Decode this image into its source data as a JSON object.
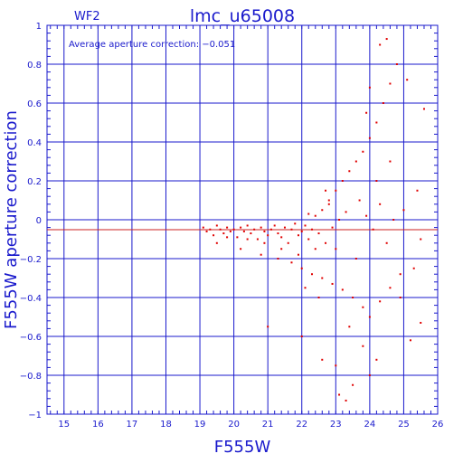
{
  "header": {
    "chip": "WF2",
    "title": "lmc_u65008"
  },
  "annotation": "Average aperture correction: −0.051",
  "colors": {
    "axis": "#1a1acc",
    "points": "#e00000",
    "mean_line": "#cc2222"
  },
  "chart_data": {
    "type": "scatter",
    "xlabel": "F555W",
    "ylabel": "F555W aperture correction",
    "xlim": [
      14.5,
      26
    ],
    "ylim": [
      -1,
      1
    ],
    "x_ticks": [
      15,
      16,
      17,
      18,
      19,
      20,
      21,
      22,
      23,
      24,
      25,
      26
    ],
    "y_ticks": [
      -1,
      -0.8,
      -0.6,
      -0.4,
      -0.2,
      0,
      0.2,
      0.4,
      0.6,
      0.8,
      1
    ],
    "y_tick_labels": [
      "−1",
      "−0.8",
      "−0.6",
      "−0.4",
      "−0.2",
      "0",
      "0.2",
      "0.4",
      "0.6",
      "0.8",
      "1"
    ],
    "grid": true,
    "mean_correction": -0.051,
    "points": [
      [
        19.1,
        -0.04
      ],
      [
        19.2,
        -0.06
      ],
      [
        19.3,
        -0.05
      ],
      [
        19.4,
        -0.08
      ],
      [
        19.5,
        -0.03
      ],
      [
        19.6,
        -0.05
      ],
      [
        19.7,
        -0.07
      ],
      [
        19.8,
        -0.04
      ],
      [
        19.9,
        -0.06
      ],
      [
        20.0,
        -0.05
      ],
      [
        20.1,
        -0.09
      ],
      [
        20.2,
        -0.04
      ],
      [
        20.3,
        -0.06
      ],
      [
        20.4,
        -0.03
      ],
      [
        20.5,
        -0.07
      ],
      [
        20.6,
        -0.05
      ],
      [
        20.7,
        -0.1
      ],
      [
        20.8,
        -0.04
      ],
      [
        20.9,
        -0.06
      ],
      [
        21.0,
        -0.08
      ],
      [
        21.1,
        -0.05
      ],
      [
        21.2,
        -0.03
      ],
      [
        21.3,
        -0.07
      ],
      [
        21.4,
        -0.09
      ],
      [
        21.5,
        -0.04
      ],
      [
        21.6,
        -0.12
      ],
      [
        21.7,
        -0.05
      ],
      [
        21.8,
        -0.02
      ],
      [
        21.9,
        -0.08
      ],
      [
        22.0,
        -0.06
      ],
      [
        22.1,
        -0.03
      ],
      [
        22.2,
        -0.1
      ],
      [
        22.3,
        -0.05
      ],
      [
        22.4,
        0.02
      ],
      [
        22.5,
        -0.07
      ],
      [
        22.6,
        0.05
      ],
      [
        22.7,
        -0.12
      ],
      [
        22.8,
        0.08
      ],
      [
        22.9,
        -0.04
      ],
      [
        23.0,
        -0.15
      ],
      [
        19.5,
        -0.12
      ],
      [
        20.2,
        -0.15
      ],
      [
        20.8,
        -0.18
      ],
      [
        21.3,
        -0.2
      ],
      [
        21.7,
        -0.22
      ],
      [
        22.0,
        -0.25
      ],
      [
        22.3,
        -0.28
      ],
      [
        22.6,
        -0.3
      ],
      [
        22.9,
        -0.33
      ],
      [
        23.2,
        -0.36
      ],
      [
        23.5,
        -0.4
      ],
      [
        23.8,
        -0.45
      ],
      [
        24.0,
        -0.5
      ],
      [
        24.3,
        -0.42
      ],
      [
        24.6,
        -0.35
      ],
      [
        24.9,
        -0.28
      ],
      [
        21.0,
        -0.55
      ],
      [
        22.0,
        -0.6
      ],
      [
        23.0,
        -0.75
      ],
      [
        23.5,
        -0.85
      ],
      [
        24.0,
        -0.8
      ],
      [
        22.6,
        -0.72
      ],
      [
        23.3,
        -0.93
      ],
      [
        23.1,
        -0.9
      ],
      [
        22.8,
        0.1
      ],
      [
        23.0,
        0.15
      ],
      [
        23.2,
        0.2
      ],
      [
        23.4,
        0.25
      ],
      [
        23.6,
        0.3
      ],
      [
        23.8,
        0.35
      ],
      [
        24.0,
        0.42
      ],
      [
        24.2,
        0.5
      ],
      [
        24.4,
        0.6
      ],
      [
        24.6,
        0.7
      ],
      [
        24.8,
        0.8
      ],
      [
        24.5,
        0.93
      ],
      [
        24.3,
        0.9
      ],
      [
        24.0,
        0.68
      ],
      [
        23.9,
        0.55
      ],
      [
        25.1,
        0.72
      ],
      [
        25.6,
        0.57
      ],
      [
        25.4,
        0.15
      ],
      [
        25.0,
        0.05
      ],
      [
        25.5,
        -0.1
      ],
      [
        25.3,
        -0.25
      ],
      [
        25.5,
        -0.53
      ],
      [
        25.2,
        -0.62
      ],
      [
        24.9,
        -0.4
      ],
      [
        23.7,
        0.1
      ],
      [
        23.9,
        0.02
      ],
      [
        24.1,
        -0.05
      ],
      [
        24.3,
        0.08
      ],
      [
        24.5,
        -0.12
      ],
      [
        24.7,
        0.0
      ],
      [
        24.2,
        0.2
      ],
      [
        24.6,
        0.3
      ],
      [
        22.4,
        -0.15
      ],
      [
        21.9,
        -0.18
      ],
      [
        21.4,
        -0.15
      ],
      [
        20.9,
        -0.12
      ],
      [
        20.4,
        -0.1
      ],
      [
        19.8,
        -0.09
      ],
      [
        22.5,
        -0.4
      ],
      [
        22.1,
        -0.35
      ],
      [
        23.6,
        -0.2
      ],
      [
        23.4,
        -0.55
      ],
      [
        23.8,
        -0.65
      ],
      [
        24.2,
        -0.72
      ],
      [
        22.7,
        0.15
      ],
      [
        23.1,
        0.0
      ],
      [
        23.3,
        0.04
      ],
      [
        22.2,
        0.03
      ]
    ]
  }
}
